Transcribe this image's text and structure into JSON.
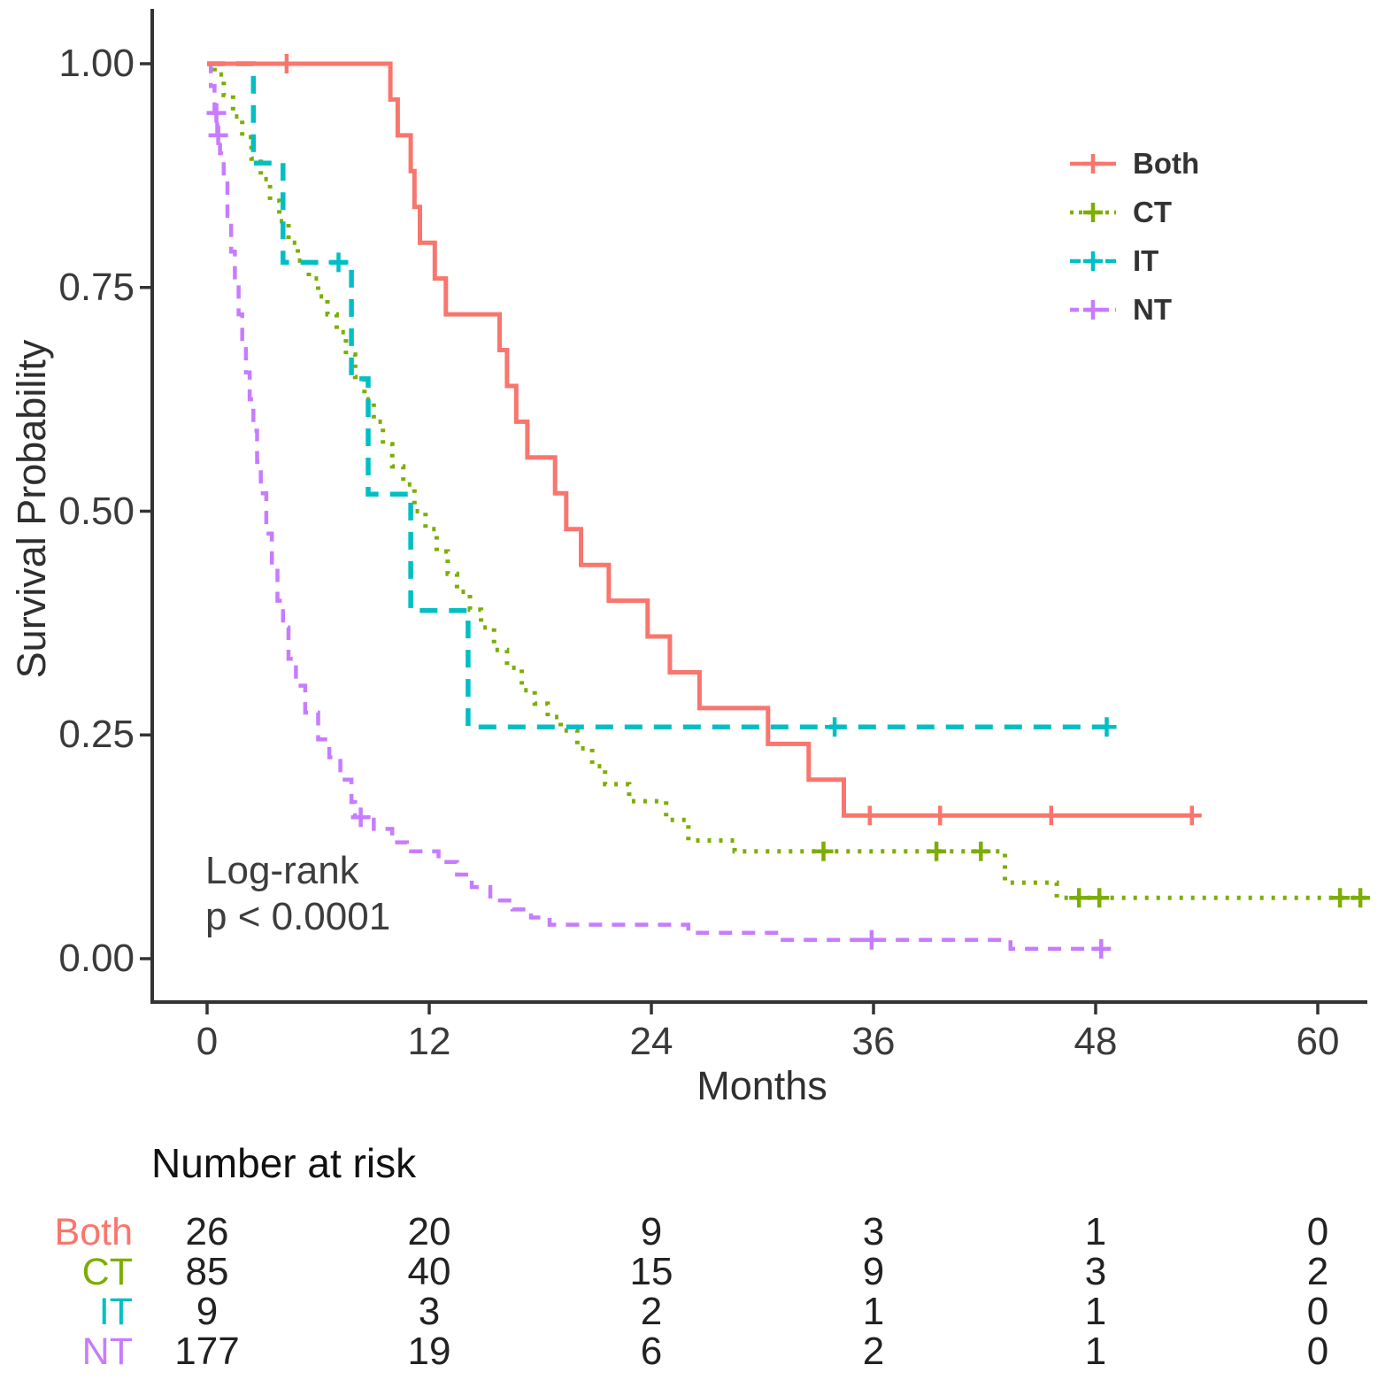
{
  "chart_data": {
    "type": "line",
    "subtype": "kaplan_meier_step_survival",
    "title": "",
    "xlabel": "Months",
    "ylabel": "Survival Probability",
    "xlim": [
      0,
      63
    ],
    "ylim": [
      0,
      1
    ],
    "grid": false,
    "legend_position": "top-right",
    "xticks": {
      "values": [
        0,
        12,
        24,
        36,
        48,
        60
      ],
      "labels": [
        "0",
        "12",
        "24",
        "36",
        "48",
        "60"
      ]
    },
    "yticks": {
      "values": [
        1.0,
        0.75,
        0.5,
        0.25,
        0.0
      ],
      "labels": [
        "1.00",
        "0.75",
        "0.50",
        "0.25",
        "0.00"
      ]
    },
    "annotation": {
      "line1": "Log-rank",
      "line2": "p < 0.0001"
    },
    "series": [
      {
        "name": "CT",
        "color": "#7CAE00",
        "dash": [
          4,
          9
        ],
        "stroke_width": 5,
        "legend_dash": [
          4,
          6
        ],
        "steps": [
          [
            0,
            1
          ],
          [
            0.4,
            0.988
          ],
          [
            0.9,
            0.965
          ],
          [
            1.4,
            0.941
          ],
          [
            1.9,
            0.918
          ],
          [
            2.4,
            0.894
          ],
          [
            2.9,
            0.871
          ],
          [
            3.4,
            0.847
          ],
          [
            3.9,
            0.824
          ],
          [
            4.4,
            0.8
          ],
          [
            4.9,
            0.78
          ],
          [
            5.5,
            0.76
          ],
          [
            6,
            0.74
          ],
          [
            6.5,
            0.72
          ],
          [
            7,
            0.7
          ],
          [
            7.5,
            0.675
          ],
          [
            8,
            0.65
          ],
          [
            8.5,
            0.625
          ],
          [
            9,
            0.6
          ],
          [
            9.5,
            0.575
          ],
          [
            10,
            0.55
          ],
          [
            10.6,
            0.53
          ],
          [
            11.2,
            0.5
          ],
          [
            11.8,
            0.48
          ],
          [
            12.4,
            0.455
          ],
          [
            13,
            0.43
          ],
          [
            13.5,
            0.41
          ],
          [
            14.2,
            0.39
          ],
          [
            14.8,
            0.37
          ],
          [
            15.5,
            0.345
          ],
          [
            16.2,
            0.325
          ],
          [
            17,
            0.3
          ],
          [
            17.7,
            0.285
          ],
          [
            18.4,
            0.27
          ],
          [
            19.1,
            0.255
          ],
          [
            20,
            0.235
          ],
          [
            20.8,
            0.215
          ],
          [
            21.5,
            0.195
          ],
          [
            22.8,
            0.176
          ],
          [
            24.8,
            0.155
          ],
          [
            26,
            0.132
          ],
          [
            28.5,
            0.12
          ],
          [
            43.1,
            0.085
          ],
          [
            45.9,
            0.068
          ],
          [
            62.6,
            0.068
          ]
        ],
        "censors": [
          [
            33.3,
            0.12
          ],
          [
            39.4,
            0.12
          ],
          [
            41.8,
            0.12
          ],
          [
            47.1,
            0.068
          ],
          [
            48.2,
            0.068
          ],
          [
            61.2,
            0.068
          ],
          [
            62.3,
            0.068
          ]
        ]
      },
      {
        "name": "NT",
        "color": "#C77CFF",
        "dash": [
          15,
          11
        ],
        "stroke_width": 4.5,
        "legend_dash": [
          10,
          7
        ],
        "steps": [
          [
            0,
            1
          ],
          [
            0.2,
            0.975
          ],
          [
            0.4,
            0.945
          ],
          [
            0.55,
            0.92
          ],
          [
            0.7,
            0.9
          ],
          [
            0.9,
            0.875
          ],
          [
            1.1,
            0.83
          ],
          [
            1.3,
            0.79
          ],
          [
            1.5,
            0.755
          ],
          [
            1.7,
            0.72
          ],
          [
            1.9,
            0.69
          ],
          [
            2.1,
            0.655
          ],
          [
            2.3,
            0.625
          ],
          [
            2.5,
            0.59
          ],
          [
            2.7,
            0.555
          ],
          [
            2.9,
            0.52
          ],
          [
            3.2,
            0.475
          ],
          [
            3.5,
            0.44
          ],
          [
            3.8,
            0.4
          ],
          [
            4.1,
            0.37
          ],
          [
            4.4,
            0.335
          ],
          [
            4.8,
            0.305
          ],
          [
            5.3,
            0.275
          ],
          [
            6,
            0.245
          ],
          [
            6.6,
            0.225
          ],
          [
            7.2,
            0.2
          ],
          [
            7.8,
            0.175
          ],
          [
            8,
            0.158
          ],
          [
            9,
            0.145
          ],
          [
            10,
            0.13
          ],
          [
            10.8,
            0.12
          ],
          [
            12.5,
            0.108
          ],
          [
            13.5,
            0.094
          ],
          [
            14.3,
            0.08
          ],
          [
            15.3,
            0.065
          ],
          [
            16.5,
            0.055
          ],
          [
            17.5,
            0.046
          ],
          [
            18.5,
            0.038
          ],
          [
            26,
            0.029
          ],
          [
            30.9,
            0.021
          ],
          [
            43.4,
            0.011
          ],
          [
            48.4,
            0.011
          ]
        ],
        "censors": [
          [
            0.5,
            0.945
          ],
          [
            0.6,
            0.92
          ],
          [
            8.3,
            0.158
          ],
          [
            35.9,
            0.021
          ],
          [
            48.3,
            0.011
          ]
        ]
      },
      {
        "name": "IT",
        "color": "#00BFC4",
        "dash": [
          20,
          13
        ],
        "stroke_width": 5.5,
        "legend_dash": [
          12,
          8
        ],
        "steps": [
          [
            0,
            1
          ],
          [
            2.5,
            0.889
          ],
          [
            4.1,
            0.778
          ],
          [
            7.8,
            0.648
          ],
          [
            8.7,
            0.519
          ],
          [
            11,
            0.389
          ],
          [
            14.1,
            0.259
          ],
          [
            48.6,
            0.259
          ]
        ],
        "censors": [
          [
            7.1,
            0.778
          ],
          [
            33.9,
            0.259
          ],
          [
            48.6,
            0.259
          ]
        ]
      },
      {
        "name": "Both",
        "color": "#F8766D",
        "dash": [],
        "stroke_width": 5,
        "legend_dash": [],
        "steps": [
          [
            0,
            1
          ],
          [
            9.9,
            0.96
          ],
          [
            10.3,
            0.92
          ],
          [
            11,
            0.88
          ],
          [
            11.2,
            0.84
          ],
          [
            11.5,
            0.8
          ],
          [
            12.3,
            0.76
          ],
          [
            12.9,
            0.72
          ],
          [
            15.8,
            0.68
          ],
          [
            16.2,
            0.64
          ],
          [
            16.7,
            0.6
          ],
          [
            17.3,
            0.56
          ],
          [
            18.8,
            0.52
          ],
          [
            19.4,
            0.48
          ],
          [
            20.2,
            0.44
          ],
          [
            21.7,
            0.4
          ],
          [
            23.8,
            0.36
          ],
          [
            25,
            0.32
          ],
          [
            26.6,
            0.28
          ],
          [
            30.3,
            0.24
          ],
          [
            32.5,
            0.2
          ],
          [
            34.4,
            0.16
          ],
          [
            53.2,
            0.16
          ]
        ],
        "censors": [
          [
            4.3,
            1
          ],
          [
            35.8,
            0.16
          ],
          [
            39.6,
            0.16
          ],
          [
            45.6,
            0.16
          ],
          [
            53.2,
            0.16
          ]
        ]
      }
    ],
    "legend_order": [
      "Both",
      "CT",
      "IT",
      "NT"
    ],
    "risk_table": {
      "title": "Number at risk",
      "times": [
        0,
        12,
        24,
        36,
        48,
        60
      ],
      "rows": [
        {
          "name": "Both",
          "color": "#F8766D",
          "values": [
            "26",
            "20",
            "9",
            "3",
            "1",
            "0"
          ]
        },
        {
          "name": "CT",
          "color": "#7CAE00",
          "values": [
            "85",
            "40",
            "15",
            "9",
            "3",
            "2"
          ]
        },
        {
          "name": "IT",
          "color": "#00BFC4",
          "values": [
            "9",
            "3",
            "2",
            "1",
            "1",
            "0"
          ]
        },
        {
          "name": "NT",
          "color": "#C77CFF",
          "values": [
            "177",
            "19",
            "6",
            "2",
            "1",
            "0"
          ]
        }
      ]
    },
    "colors": {
      "axis": "#333333",
      "tick_text": "#3a3a3a",
      "risk_number_text": "#222222"
    }
  }
}
